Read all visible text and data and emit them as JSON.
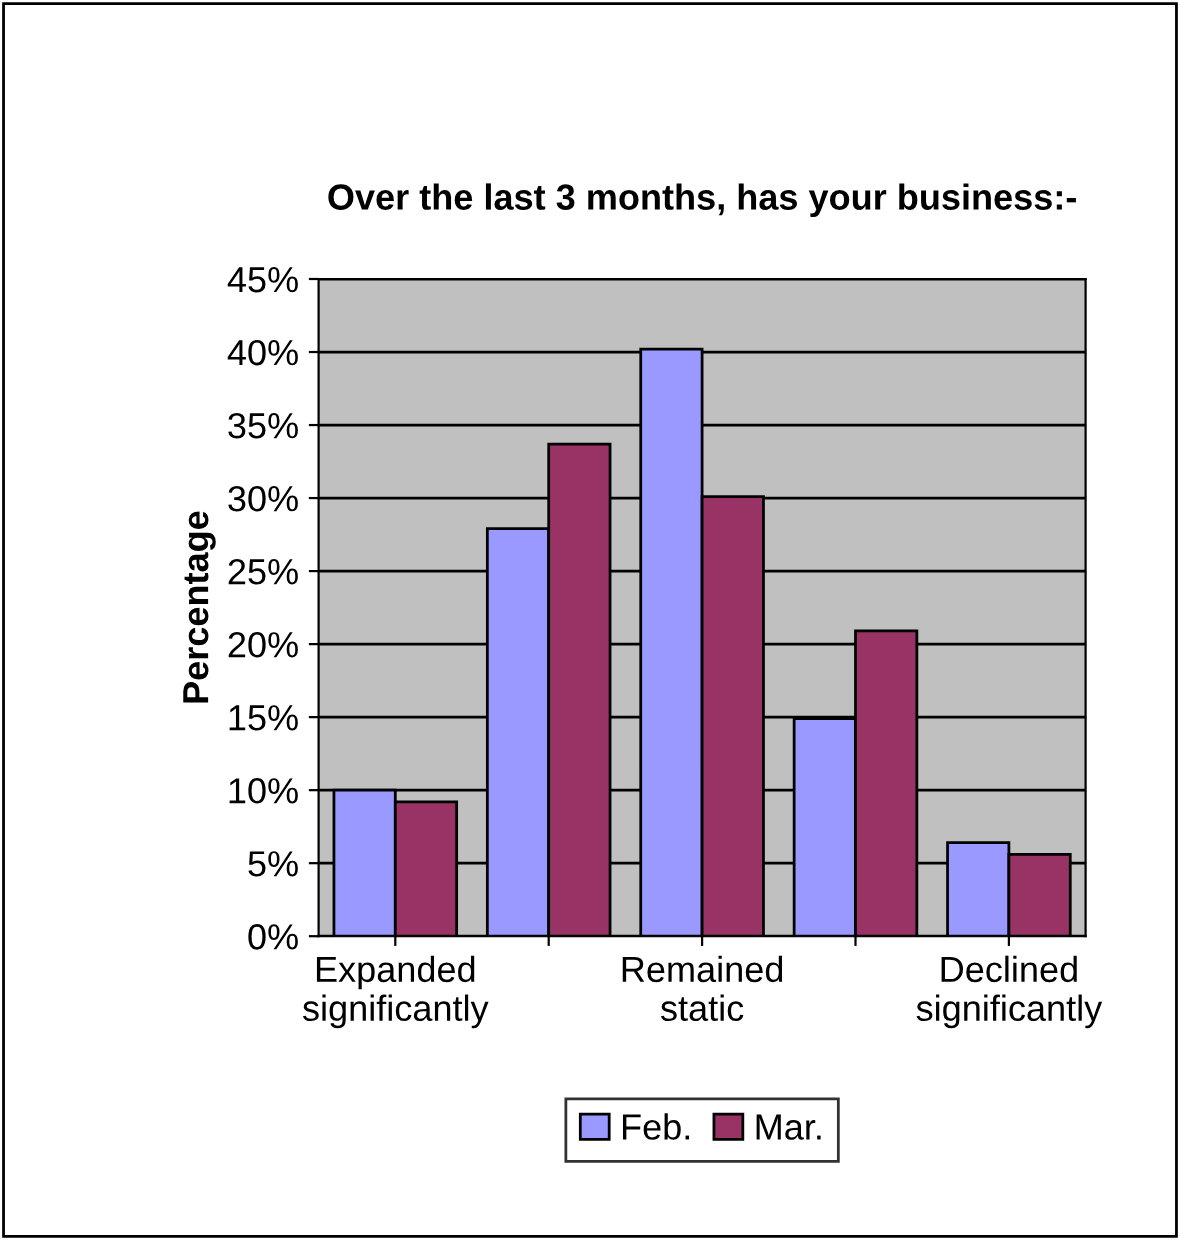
{
  "chart_data": {
    "type": "bar",
    "title": "Over the last 3 months, has your business:-",
    "ylabel": "Percentage",
    "categories": [
      "Expanded significantly",
      null,
      "Remained static",
      null,
      "Declined significantly"
    ],
    "series": [
      {
        "name": "Feb.",
        "color": "#9999ff",
        "values": [
          10.0,
          27.9,
          40.2,
          14.9,
          6.4
        ]
      },
      {
        "name": "Mar.",
        "color": "#993366",
        "values": [
          9.2,
          33.7,
          30.1,
          20.9,
          5.6
        ]
      }
    ],
    "ylim": [
      0,
      45
    ],
    "yticks": [
      {
        "value": 0,
        "label": "0%"
      },
      {
        "value": 5,
        "label": "5%"
      },
      {
        "value": 10,
        "label": "10%"
      },
      {
        "value": 15,
        "label": "15%"
      },
      {
        "value": 20,
        "label": "20%"
      },
      {
        "value": 25,
        "label": "25%"
      },
      {
        "value": 30,
        "label": "30%"
      },
      {
        "value": 35,
        "label": "35%"
      },
      {
        "value": 40,
        "label": "40%"
      },
      {
        "value": 45,
        "label": "45%"
      }
    ],
    "grid": "y",
    "legend": "bottom"
  }
}
